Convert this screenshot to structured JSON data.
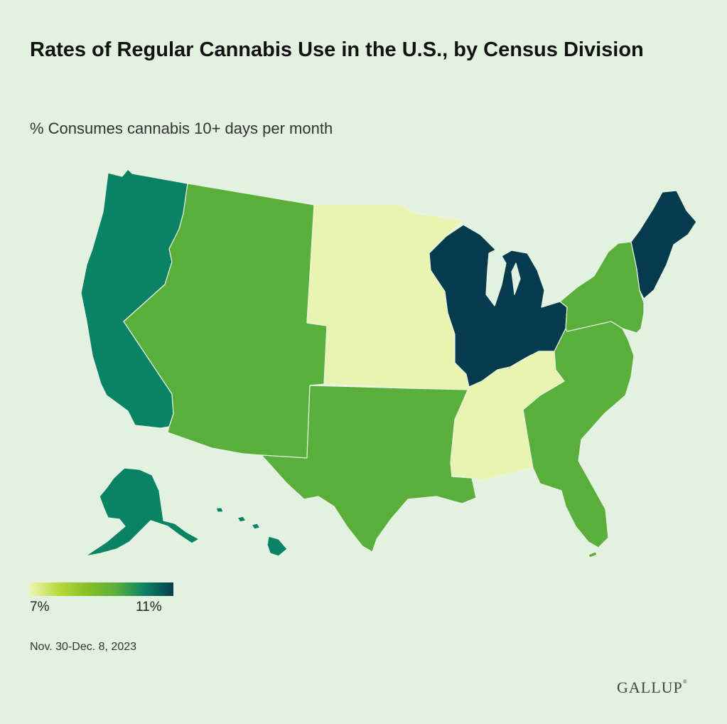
{
  "title": "Rates of Regular Cannabis Use in the U.S., by Census Division",
  "subtitle": "% Consumes cannabis 10+ days per month",
  "legend": {
    "min_label": "7%",
    "max_label": "11%",
    "colors": [
      "#eff5b4",
      "#b7d93a",
      "#86c025",
      "#5aaf3c",
      "#0a8365",
      "#073b4c"
    ]
  },
  "date": "Nov. 30-Dec. 8, 2023",
  "brand": "GALLUP",
  "colors": {
    "background": "#e3f1e1",
    "level_7": "#e9f4b0",
    "level_9": "#5aaf3a",
    "level_10": "#0a8365",
    "level_11": "#053c4d"
  },
  "divisions": [
    {
      "name": "Pacific",
      "level": "level_10"
    },
    {
      "name": "Mountain",
      "level": "level_9"
    },
    {
      "name": "West North Central",
      "level": "level_7"
    },
    {
      "name": "West South Central",
      "level": "level_9"
    },
    {
      "name": "East North Central",
      "level": "level_11"
    },
    {
      "name": "East South Central",
      "level": "level_7"
    },
    {
      "name": "South Atlantic",
      "level": "level_9"
    },
    {
      "name": "Middle Atlantic",
      "level": "level_9"
    },
    {
      "name": "New England",
      "level": "level_11"
    }
  ]
}
